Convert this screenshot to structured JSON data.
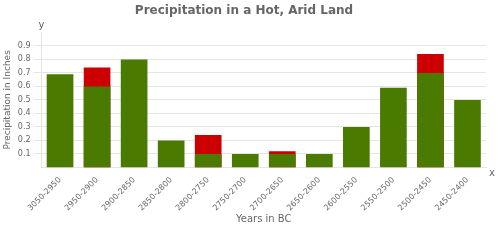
{
  "chart_data": {
    "type": "bar",
    "title": "Precipitation in a Hot, Arid Land",
    "xlabel": "Years in BC",
    "ylabel": "Precipitation in Inches",
    "categories": [
      "3050-2950",
      "2950-2900",
      "2900-2850",
      "2850-2800",
      "2800-2750",
      "2750-2700",
      "2700-2650",
      "2650-2600",
      "2600-2550",
      "2550-2500",
      "2500-2450",
      "2450-2400"
    ],
    "series": [
      {
        "color": "#cc0000",
        "values": [
          0.0,
          0.74,
          0.0,
          0.0,
          0.24,
          0.0,
          0.12,
          0.0,
          0.0,
          0.0,
          0.84,
          0.0
        ]
      },
      {
        "color": "#4a7a00",
        "values": [
          0.69,
          0.6,
          0.8,
          0.2,
          0.1,
          0.1,
          0.1,
          0.1,
          0.3,
          0.59,
          0.7,
          0.5
        ]
      }
    ],
    "ylim": [
      0,
      1.0
    ],
    "yticks": [
      0.1,
      0.2,
      0.3,
      0.4,
      0.5,
      0.6,
      0.7,
      0.8,
      0.9
    ],
    "grid": true,
    "annotations": [
      "y",
      "x"
    ]
  }
}
